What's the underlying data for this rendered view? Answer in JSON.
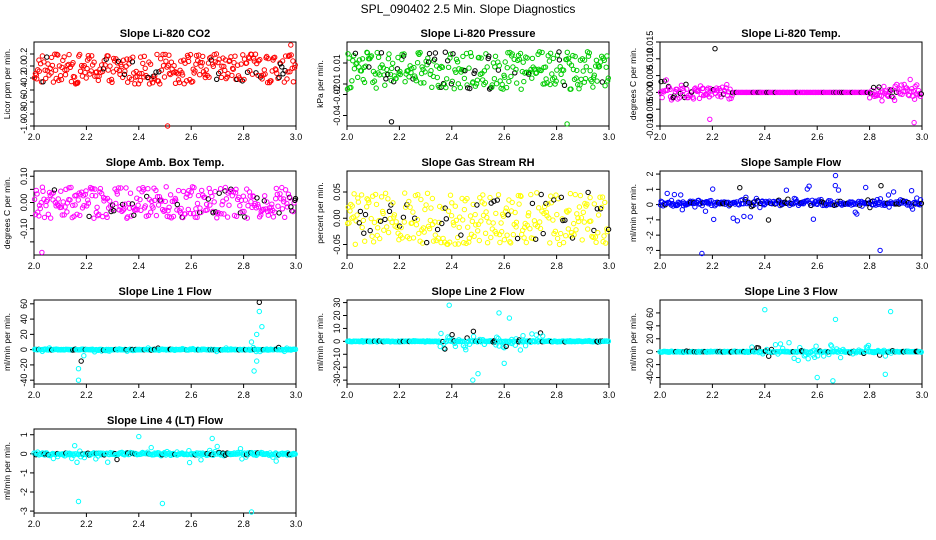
{
  "figure": {
    "title": "SPL_090402  2.5 Min. Slope Diagnostics"
  },
  "chart_data": [
    {
      "id": "co2",
      "type": "scatter",
      "title": "Slope Li-820 CO2",
      "ylabel": "Licor ppm per min.",
      "xlim": [
        2.0,
        3.0
      ],
      "ylim": [
        -1.0,
        0.4
      ],
      "yticks": [
        -1.0,
        -0.8,
        -0.6,
        -0.4,
        -0.2,
        0.0,
        0.2
      ],
      "ytick_labels": [
        "-1.0",
        "-0.8",
        "-0.6",
        "-0.4",
        "-0.2",
        "0.0",
        "0.2"
      ],
      "xticks": [
        2.0,
        2.2,
        2.4,
        2.6,
        2.8,
        3.0
      ],
      "xtick_labels": [
        "2.0",
        "2.2",
        "2.4",
        "2.6",
        "2.8",
        "3.0"
      ],
      "color": "#ff0000",
      "profile": {
        "mode": "uniform",
        "center": -0.05,
        "spread": 0.25,
        "outliers": [
          [
            2.51,
            -1.0
          ],
          [
            2.98,
            0.35
          ]
        ]
      }
    },
    {
      "id": "pressure",
      "type": "scatter",
      "title": "Slope Li-820 Pressure",
      "ylabel": "kPa per min.",
      "xlim": [
        2.0,
        3.0
      ],
      "ylim": [
        -0.05,
        0.03
      ],
      "yticks": [
        -0.04,
        -0.02,
        -0.01,
        0.01
      ],
      "ytick_labels": [
        "-0.04",
        "-0.02",
        "-0.01",
        "0.01"
      ],
      "xticks": [
        2.0,
        2.2,
        2.4,
        2.6,
        2.8,
        3.0
      ],
      "xtick_labels": [
        "2.0",
        "2.2",
        "2.4",
        "2.6",
        "2.8",
        "3.0"
      ],
      "color": "#00cc00",
      "profile": {
        "mode": "uniform",
        "center": 0.003,
        "spread": 0.018,
        "outliers": [
          [
            2.17,
            -0.046
          ],
          [
            2.84,
            -0.048
          ]
        ]
      }
    },
    {
      "id": "temp",
      "type": "scatter",
      "title": "Slope Li-820 Temp.",
      "ylabel": "degrees C per min.",
      "xlim": [
        2.0,
        3.0
      ],
      "ylim": [
        -0.01,
        0.015
      ],
      "yticks": [
        -0.01,
        -0.005,
        0.0,
        0.005,
        0.01,
        0.015
      ],
      "ytick_labels": [
        "-0.010",
        "-0.005",
        "0.000",
        "0.005",
        "0.010",
        "0.015"
      ],
      "xticks": [
        2.0,
        2.2,
        2.4,
        2.6,
        2.8,
        3.0
      ],
      "xtick_labels": [
        "2.0",
        "2.2",
        "2.4",
        "2.6",
        "2.8",
        "3.0"
      ],
      "color": "#ff00ff",
      "profile": {
        "mode": "gap",
        "center": 0.0,
        "spread": 0.004,
        "gap": [
          2.28,
          2.8
        ],
        "outliers": [
          [
            2.21,
            0.013
          ],
          [
            2.19,
            -0.008
          ],
          [
            2.97,
            -0.009
          ]
        ]
      }
    },
    {
      "id": "boxtemp",
      "type": "scatter",
      "title": "Slope Amb. Box Temp.",
      "ylabel": "degrees C per min.",
      "xlim": [
        2.0,
        3.0
      ],
      "ylim": [
        -0.2,
        0.12
      ],
      "yticks": [
        -0.15,
        -0.1,
        -0.05,
        0.0,
        0.05,
        0.1
      ],
      "ytick_labels": [
        "",
        "-0.10",
        "",
        "0.00",
        "",
        "0.10"
      ],
      "xticks": [
        2.0,
        2.2,
        2.4,
        2.6,
        2.8,
        3.0
      ],
      "xtick_labels": [
        "2.0",
        "2.2",
        "2.4",
        "2.6",
        "2.8",
        "3.0"
      ],
      "color": "#ff00ff",
      "profile": {
        "mode": "uniform",
        "center": 0.0,
        "spread": 0.06,
        "outliers": [
          [
            2.03,
            -0.19
          ]
        ]
      }
    },
    {
      "id": "rh",
      "type": "scatter",
      "title": "Slope Gas Stream RH",
      "ylabel": "percent per min.",
      "xlim": [
        2.0,
        3.0
      ],
      "ylim": [
        -0.07,
        0.09
      ],
      "yticks": [
        -0.05,
        0.0,
        0.05
      ],
      "ytick_labels": [
        "-0.05",
        "0.00",
        "0.05"
      ],
      "xticks": [
        2.0,
        2.2,
        2.4,
        2.6,
        2.8,
        3.0
      ],
      "xtick_labels": [
        "2.0",
        "2.2",
        "2.4",
        "2.6",
        "2.8",
        "3.0"
      ],
      "color": "#ffff00",
      "profile": {
        "mode": "uniform",
        "center": 0.0,
        "spread": 0.05,
        "outliers": []
      }
    },
    {
      "id": "sampleflow",
      "type": "scatter",
      "title": "Slope Sample Flow",
      "ylabel": "ml/min per min.",
      "xlim": [
        2.0,
        3.0
      ],
      "ylim": [
        -3.3,
        2.2
      ],
      "yticks": [
        -3,
        -2,
        -1,
        0,
        1,
        2
      ],
      "ytick_labels": [
        "-3",
        "-2",
        "-1",
        "0",
        "1",
        "2"
      ],
      "xticks": [
        2.0,
        2.2,
        2.4,
        2.6,
        2.8,
        3.0
      ],
      "xtick_labels": [
        "2.0",
        "2.2",
        "2.4",
        "2.6",
        "2.8",
        "3.0"
      ],
      "color": "#0000ff",
      "profile": {
        "mode": "band",
        "center": 0.1,
        "spread": 0.4,
        "wide": 1.2,
        "outliers": [
          [
            2.16,
            -3.2
          ],
          [
            2.67,
            1.9
          ],
          [
            2.84,
            -3.0
          ]
        ]
      }
    },
    {
      "id": "line1",
      "type": "scatter",
      "title": "Slope Line 1 Flow",
      "ylabel": "ml/min per min.",
      "xlim": [
        2.0,
        3.0
      ],
      "ylim": [
        -45,
        65
      ],
      "yticks": [
        -40,
        -20,
        0,
        20,
        40,
        60
      ],
      "ytick_labels": [
        "-40",
        "-20",
        "0",
        "20",
        "40",
        "60"
      ],
      "xticks": [
        2.0,
        2.2,
        2.4,
        2.6,
        2.8,
        3.0
      ],
      "xtick_labels": [
        "2.0",
        "2.2",
        "2.4",
        "2.6",
        "2.8",
        "3.0"
      ],
      "color": "#00ffff",
      "profile": {
        "mode": "band",
        "center": 0,
        "spread": 1.2,
        "wide": 3,
        "outliers": [
          [
            2.17,
            -40
          ],
          [
            2.17,
            -25
          ],
          [
            2.18,
            -15
          ],
          [
            2.19,
            -8
          ],
          [
            2.86,
            62
          ],
          [
            2.86,
            50
          ],
          [
            2.87,
            30
          ],
          [
            2.85,
            20
          ],
          [
            2.84,
            -28
          ],
          [
            2.85,
            -15
          ],
          [
            2.83,
            10
          ]
        ]
      }
    },
    {
      "id": "line2",
      "type": "scatter",
      "title": "Slope Line 2 Flow",
      "ylabel": "ml/min per min.",
      "xlim": [
        2.0,
        3.0
      ],
      "ylim": [
        -33,
        32
      ],
      "yticks": [
        -30,
        -20,
        -10,
        0,
        10,
        20,
        30
      ],
      "ytick_labels": [
        "-30",
        "-20",
        "-10",
        "0",
        "10",
        "20",
        "30"
      ],
      "xticks": [
        2.0,
        2.2,
        2.4,
        2.6,
        2.8,
        3.0
      ],
      "xtick_labels": [
        "2.0",
        "2.2",
        "2.4",
        "2.6",
        "2.8",
        "3.0"
      ],
      "color": "#00ffff",
      "profile": {
        "mode": "burst",
        "center": 0,
        "spread": 0.8,
        "burst": [
          2.35,
          2.75
        ],
        "burstSpread": 12,
        "outliers": [
          [
            2.39,
            28
          ],
          [
            2.48,
            -30
          ],
          [
            2.5,
            -25
          ],
          [
            2.58,
            22
          ],
          [
            2.62,
            18
          ],
          [
            2.6,
            -17
          ]
        ]
      }
    },
    {
      "id": "line3",
      "type": "scatter",
      "title": "Slope Line 3 Flow",
      "ylabel": "ml/min per min.",
      "xlim": [
        2.0,
        3.0
      ],
      "ylim": [
        -50,
        80
      ],
      "yticks": [
        -40,
        -20,
        0,
        20,
        40,
        60
      ],
      "ytick_labels": [
        "-40",
        "-20",
        "0",
        "20",
        "40",
        "60"
      ],
      "xticks": [
        2.0,
        2.2,
        2.4,
        2.6,
        2.8,
        3.0
      ],
      "xtick_labels": [
        "2.0",
        "2.2",
        "2.4",
        "2.6",
        "2.8",
        "3.0"
      ],
      "color": "#00ffff",
      "profile": {
        "mode": "burst",
        "center": 0,
        "spread": 1.5,
        "burst": [
          2.35,
          2.9
        ],
        "burstSpread": 20,
        "outliers": [
          [
            2.4,
            65
          ],
          [
            2.6,
            -40
          ],
          [
            2.66,
            -45
          ],
          [
            2.67,
            50
          ],
          [
            2.88,
            62
          ],
          [
            2.86,
            -35
          ]
        ]
      }
    },
    {
      "id": "line4",
      "type": "scatter",
      "title": "Slope Line 4 (LT) Flow",
      "ylabel": "ml/min per min.",
      "xlim": [
        2.0,
        3.0
      ],
      "ylim": [
        -3.1,
        1.3
      ],
      "yticks": [
        -3,
        -2,
        -1,
        0,
        1
      ],
      "ytick_labels": [
        "-3",
        "-2",
        "-1",
        "0",
        "1"
      ],
      "xticks": [
        2.0,
        2.2,
        2.4,
        2.6,
        2.8,
        3.0
      ],
      "xtick_labels": [
        "2.0",
        "2.2",
        "2.4",
        "2.6",
        "2.8",
        "3.0"
      ],
      "color": "#00ffff",
      "profile": {
        "mode": "band",
        "center": 0,
        "spread": 0.15,
        "wide": 0.5,
        "outliers": [
          [
            2.17,
            -2.5
          ],
          [
            2.49,
            -2.6
          ],
          [
            2.83,
            -3.05
          ],
          [
            2.4,
            0.9
          ],
          [
            2.68,
            0.8
          ]
        ]
      }
    }
  ]
}
